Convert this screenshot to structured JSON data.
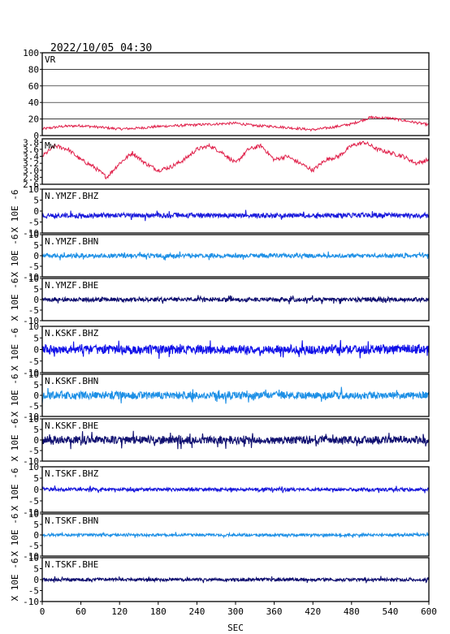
{
  "title": "2022/10/05 04:30",
  "xlabel": "SEC",
  "chart_data": {
    "type": "line",
    "x_ticks": [
      0,
      60,
      120,
      180,
      240,
      300,
      360,
      420,
      480,
      540,
      600
    ],
    "xlim": [
      0,
      600
    ],
    "panels": [
      {
        "name": "VR",
        "color": "#e0204a",
        "ylim": [
          0,
          100
        ],
        "yticks": [
          0,
          20,
          40,
          60,
          80,
          100
        ],
        "ylabel": "",
        "grid": true,
        "series": [
          {
            "x": [
              0,
              30,
              60,
              90,
              120,
              150,
              180,
              210,
              240,
              270,
              300,
              330,
              360,
              390,
              420,
              450,
              480,
              510,
              540,
              570,
              600
            ],
            "y": [
              8,
              11,
              12,
              10,
              8,
              9,
              11,
              12,
              13,
              14,
              15,
              12,
              11,
              9,
              7,
              10,
              14,
              22,
              21,
              17,
              13
            ]
          }
        ]
      },
      {
        "name": "Mw",
        "color": "#e0204a",
        "ylim": [
          2.6,
          3.9
        ],
        "yticks": [
          2.6,
          2.8,
          3.0,
          3.2,
          3.4,
          3.6,
          3.8
        ],
        "ylabel": "",
        "grid": false,
        "series": [
          {
            "x": [
              0,
              20,
              40,
              60,
              80,
              100,
              120,
              140,
              160,
              180,
              200,
              220,
              240,
              260,
              280,
              300,
              320,
              340,
              360,
              380,
              400,
              420,
              440,
              460,
              480,
              500,
              520,
              540,
              560,
              580,
              600
            ],
            "y": [
              3.4,
              3.7,
              3.6,
              3.3,
              3.1,
              2.8,
              3.2,
              3.5,
              3.2,
              3.0,
              3.1,
              3.3,
              3.6,
              3.7,
              3.5,
              3.2,
              3.6,
              3.7,
              3.3,
              3.4,
              3.2,
              3.0,
              3.3,
              3.4,
              3.7,
              3.8,
              3.6,
              3.5,
              3.4,
              3.2,
              3.3
            ]
          }
        ]
      },
      {
        "name": "N.YMZF.BHZ",
        "color": "#1a1adc",
        "ylim": [
          -10,
          10
        ],
        "yticks": [
          -10,
          -5,
          0,
          5,
          10
        ],
        "ylabel": "X 10E -6",
        "offset": -2,
        "amplitude": 0.9
      },
      {
        "name": "N.YMZF.BHN",
        "color": "#1e90e6",
        "ylim": [
          -10,
          10
        ],
        "yticks": [
          -10,
          -5,
          0,
          5,
          10
        ],
        "ylabel": "X 10E -6",
        "offset": 0,
        "amplitude": 0.8
      },
      {
        "name": "N.YMZF.BHE",
        "color": "#101070",
        "ylim": [
          -10,
          10
        ],
        "yticks": [
          -10,
          -5,
          0,
          5,
          10
        ],
        "ylabel": "X 10E -6",
        "offset": 0,
        "amplitude": 0.8
      },
      {
        "name": "N.KSKF.BHZ",
        "color": "#1010e8",
        "ylim": [
          -10,
          10
        ],
        "yticks": [
          -10,
          -5,
          0,
          5,
          10
        ],
        "ylabel": "X 10E -6",
        "offset": 0,
        "amplitude": 1.6
      },
      {
        "name": "N.KSKF.BHN",
        "color": "#1e90e6",
        "ylim": [
          -10,
          10
        ],
        "yticks": [
          -10,
          -5,
          0,
          5,
          10
        ],
        "ylabel": "X 10E -6",
        "offset": 0,
        "amplitude": 1.5
      },
      {
        "name": "N.KSKF.BHE",
        "color": "#101070",
        "ylim": [
          -10,
          10
        ],
        "yticks": [
          -10,
          -5,
          0,
          5,
          10
        ],
        "ylabel": "X 10E -6",
        "offset": 0,
        "amplitude": 1.6
      },
      {
        "name": "N.TSKF.BHZ",
        "color": "#1a1adc",
        "ylim": [
          -10,
          10
        ],
        "yticks": [
          -10,
          -5,
          0,
          5,
          10
        ],
        "ylabel": "X 10E -6",
        "offset": 0,
        "amplitude": 0.6
      },
      {
        "name": "N.TSKF.BHN",
        "color": "#1e90e6",
        "ylim": [
          -10,
          10
        ],
        "yticks": [
          -10,
          -5,
          0,
          5,
          10
        ],
        "ylabel": "X 10E -6",
        "offset": 0,
        "amplitude": 0.5
      },
      {
        "name": "N.TSKF.BHE",
        "color": "#101070",
        "ylim": [
          -10,
          10
        ],
        "yticks": [
          -10,
          -5,
          0,
          5,
          10
        ],
        "ylabel": "X 10E -6",
        "offset": 0,
        "amplitude": 0.6
      }
    ]
  }
}
